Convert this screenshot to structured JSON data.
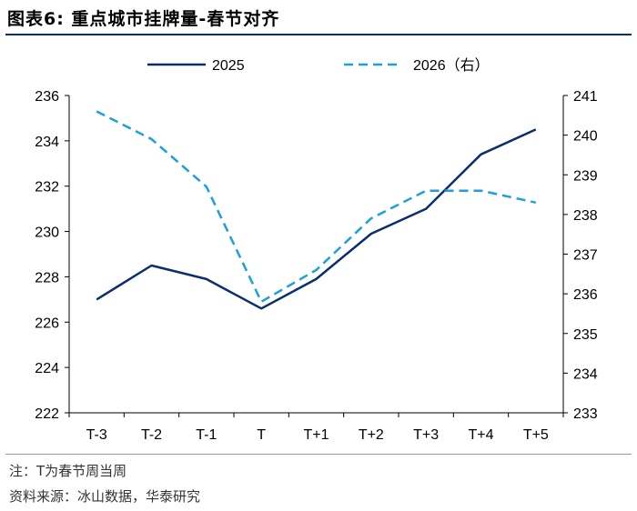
{
  "header": {
    "title": "图表6:   重点城市挂牌量-春节对齐"
  },
  "footer": {
    "note": "注：T为春节周当周",
    "source": "资料来源：冰山数据，华泰研究"
  },
  "colors": {
    "series_2025": "#0b2e6f",
    "series_2026": "#1aa0dc",
    "rule": "#0b2e6f"
  },
  "chart_data": {
    "type": "line",
    "categories": [
      "T-3",
      "T-2",
      "T-1",
      "T",
      "T+1",
      "T+2",
      "T+3",
      "T+4",
      "T+5"
    ],
    "series": [
      {
        "name": "2025",
        "axis": "left",
        "style": "solid",
        "values": [
          227.0,
          228.5,
          227.9,
          226.6,
          227.9,
          229.9,
          231.0,
          233.4,
          234.5
        ]
      },
      {
        "name": "2026（右）",
        "axis": "right",
        "style": "dashed",
        "values": [
          240.6,
          239.9,
          238.7,
          235.8,
          236.6,
          237.9,
          238.6,
          238.6,
          238.3
        ]
      }
    ],
    "y_left": {
      "min": 222,
      "max": 236,
      "step": 2,
      "ticks": [
        "222",
        "224",
        "226",
        "228",
        "230",
        "232",
        "234",
        "236"
      ]
    },
    "y_right": {
      "min": 233,
      "max": 241,
      "step": 1,
      "ticks": [
        "233",
        "234",
        "235",
        "236",
        "237",
        "238",
        "239",
        "240",
        "241"
      ]
    },
    "grid": false,
    "legend": "top"
  }
}
